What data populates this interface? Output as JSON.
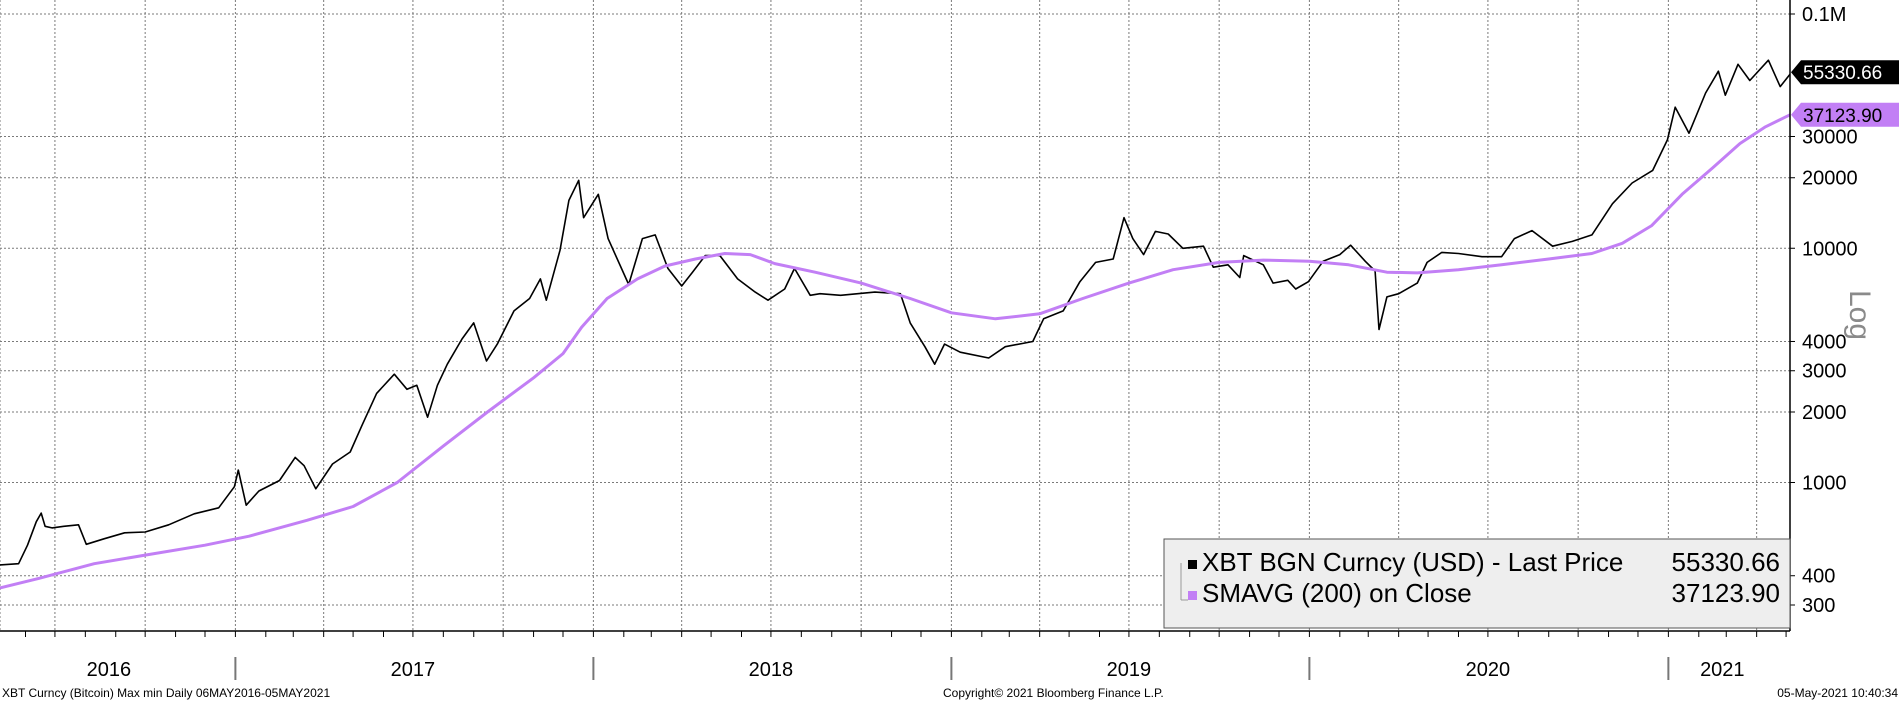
{
  "chart_data": {
    "type": "line",
    "y_scale": "log",
    "grid": true,
    "legend_position": "bottom-right",
    "ylabel": "Log",
    "y_ticks": [
      {
        "value": 100000,
        "label": "0.1M"
      },
      {
        "value": 30000,
        "label": "30000"
      },
      {
        "value": 20000,
        "label": "20000"
      },
      {
        "value": 10000,
        "label": "10000"
      },
      {
        "value": 4000,
        "label": "4000"
      },
      {
        "value": 3000,
        "label": "3000"
      },
      {
        "value": 2000,
        "label": "2000"
      },
      {
        "value": 1000,
        "label": "1000"
      },
      {
        "value": 400,
        "label": "400"
      },
      {
        "value": 300,
        "label": "300"
      }
    ],
    "x_ticks": [
      {
        "date": "2016-05-06"
      },
      {
        "date": "2016-07-01"
      },
      {
        "date": "2016-10-01"
      },
      {
        "date": "2017-01-01"
      },
      {
        "date": "2017-04-01"
      },
      {
        "date": "2017-07-01"
      },
      {
        "date": "2017-10-01"
      },
      {
        "date": "2018-01-01"
      },
      {
        "date": "2018-04-01"
      },
      {
        "date": "2018-07-01"
      },
      {
        "date": "2018-10-01"
      },
      {
        "date": "2019-01-01"
      },
      {
        "date": "2019-04-01"
      },
      {
        "date": "2019-07-01"
      },
      {
        "date": "2019-10-01"
      },
      {
        "date": "2020-01-01"
      },
      {
        "date": "2020-04-01"
      },
      {
        "date": "2020-07-01"
      },
      {
        "date": "2020-10-01"
      },
      {
        "date": "2021-01-01"
      },
      {
        "date": "2021-04-01"
      }
    ],
    "year_labels": [
      {
        "label": "2016",
        "date": "2016-08-25"
      },
      {
        "label": "2017",
        "date": "2017-07-01"
      },
      {
        "label": "2018",
        "date": "2018-07-01"
      },
      {
        "label": "2019",
        "date": "2019-07-01"
      },
      {
        "label": "2020",
        "date": "2020-07-01"
      },
      {
        "label": "2021",
        "date": "2021-02-25"
      }
    ],
    "year_separators": [
      "2017-01-01",
      "2018-01-01",
      "2019-01-01",
      "2020-01-01",
      "2021-01-01"
    ],
    "series": [
      {
        "name": "XBT BGN Curncy (USD) - Last Price",
        "color": "#000000",
        "last_value_label": "55330.66",
        "points": [
          [
            "2016-05-06",
            445
          ],
          [
            "2016-05-25",
            450
          ],
          [
            "2016-06-03",
            540
          ],
          [
            "2016-06-12",
            680
          ],
          [
            "2016-06-17",
            740
          ],
          [
            "2016-06-21",
            650
          ],
          [
            "2016-06-28",
            640
          ],
          [
            "2016-07-10",
            650
          ],
          [
            "2016-07-25",
            660
          ],
          [
            "2016-08-02",
            545
          ],
          [
            "2016-08-20",
            575
          ],
          [
            "2016-09-10",
            610
          ],
          [
            "2016-10-01",
            615
          ],
          [
            "2016-10-25",
            660
          ],
          [
            "2016-11-20",
            735
          ],
          [
            "2016-12-15",
            780
          ],
          [
            "2016-12-31",
            960
          ],
          [
            "2017-01-04",
            1130
          ],
          [
            "2017-01-12",
            800
          ],
          [
            "2017-01-25",
            920
          ],
          [
            "2017-02-15",
            1020
          ],
          [
            "2017-03-03",
            1280
          ],
          [
            "2017-03-12",
            1180
          ],
          [
            "2017-03-24",
            940
          ],
          [
            "2017-04-10",
            1200
          ],
          [
            "2017-04-28",
            1350
          ],
          [
            "2017-05-10",
            1750
          ],
          [
            "2017-05-25",
            2400
          ],
          [
            "2017-06-12",
            2900
          ],
          [
            "2017-06-25",
            2500
          ],
          [
            "2017-07-05",
            2600
          ],
          [
            "2017-07-16",
            1900
          ],
          [
            "2017-07-26",
            2600
          ],
          [
            "2017-08-05",
            3200
          ],
          [
            "2017-08-20",
            4100
          ],
          [
            "2017-09-01",
            4800
          ],
          [
            "2017-09-14",
            3300
          ],
          [
            "2017-09-25",
            3900
          ],
          [
            "2017-10-12",
            5400
          ],
          [
            "2017-10-28",
            6100
          ],
          [
            "2017-11-08",
            7400
          ],
          [
            "2017-11-14",
            6000
          ],
          [
            "2017-11-28",
            9800
          ],
          [
            "2017-12-07",
            16000
          ],
          [
            "2017-12-17",
            19500
          ],
          [
            "2017-12-22",
            13500
          ],
          [
            "2018-01-06",
            17000
          ],
          [
            "2018-01-16",
            11000
          ],
          [
            "2018-02-06",
            7000
          ],
          [
            "2018-02-20",
            11000
          ],
          [
            "2018-03-05",
            11400
          ],
          [
            "2018-03-18",
            8200
          ],
          [
            "2018-04-01",
            6900
          ],
          [
            "2018-04-12",
            7900
          ],
          [
            "2018-04-25",
            9300
          ],
          [
            "2018-05-10",
            9300
          ],
          [
            "2018-05-28",
            7400
          ],
          [
            "2018-06-15",
            6500
          ],
          [
            "2018-06-28",
            6000
          ],
          [
            "2018-07-15",
            6700
          ],
          [
            "2018-07-25",
            8200
          ],
          [
            "2018-08-10",
            6300
          ],
          [
            "2018-08-20",
            6400
          ],
          [
            "2018-09-10",
            6300
          ],
          [
            "2018-10-15",
            6500
          ],
          [
            "2018-11-10",
            6400
          ],
          [
            "2018-11-20",
            4800
          ],
          [
            "2018-12-05",
            3800
          ],
          [
            "2018-12-15",
            3200
          ],
          [
            "2018-12-25",
            3900
          ],
          [
            "2019-01-10",
            3600
          ],
          [
            "2019-02-08",
            3400
          ],
          [
            "2019-02-25",
            3800
          ],
          [
            "2019-03-25",
            4000
          ],
          [
            "2019-04-05",
            5000
          ],
          [
            "2019-04-25",
            5400
          ],
          [
            "2019-05-12",
            7200
          ],
          [
            "2019-05-28",
            8700
          ],
          [
            "2019-06-15",
            9000
          ],
          [
            "2019-06-26",
            13500
          ],
          [
            "2019-07-05",
            11000
          ],
          [
            "2019-07-16",
            9400
          ],
          [
            "2019-07-28",
            11800
          ],
          [
            "2019-08-10",
            11500
          ],
          [
            "2019-08-25",
            10000
          ],
          [
            "2019-09-15",
            10200
          ],
          [
            "2019-09-25",
            8300
          ],
          [
            "2019-10-10",
            8500
          ],
          [
            "2019-10-22",
            7500
          ],
          [
            "2019-10-26",
            9300
          ],
          [
            "2019-11-15",
            8500
          ],
          [
            "2019-11-25",
            7100
          ],
          [
            "2019-12-10",
            7300
          ],
          [
            "2019-12-18",
            6700
          ],
          [
            "2019-12-31",
            7200
          ],
          [
            "2020-01-15",
            8800
          ],
          [
            "2020-02-01",
            9400
          ],
          [
            "2020-02-12",
            10300
          ],
          [
            "2020-02-27",
            8800
          ],
          [
            "2020-03-08",
            8000
          ],
          [
            "2020-03-12",
            4500
          ],
          [
            "2020-03-20",
            6200
          ],
          [
            "2020-04-01",
            6400
          ],
          [
            "2020-04-20",
            7100
          ],
          [
            "2020-04-30",
            8700
          ],
          [
            "2020-05-15",
            9600
          ],
          [
            "2020-06-01",
            9500
          ],
          [
            "2020-06-25",
            9200
          ],
          [
            "2020-07-15",
            9200
          ],
          [
            "2020-07-28",
            11000
          ],
          [
            "2020-08-15",
            11900
          ],
          [
            "2020-09-05",
            10200
          ],
          [
            "2020-09-25",
            10700
          ],
          [
            "2020-10-15",
            11400
          ],
          [
            "2020-11-05",
            15500
          ],
          [
            "2020-11-25",
            19000
          ],
          [
            "2020-12-16",
            21500
          ],
          [
            "2020-12-31",
            29000
          ],
          [
            "2021-01-08",
            40000
          ],
          [
            "2021-01-22",
            31000
          ],
          [
            "2021-02-08",
            46000
          ],
          [
            "2021-02-21",
            57000
          ],
          [
            "2021-02-28",
            45000
          ],
          [
            "2021-03-13",
            61000
          ],
          [
            "2021-03-25",
            52000
          ],
          [
            "2021-04-13",
            63500
          ],
          [
            "2021-04-25",
            49000
          ],
          [
            "2021-05-05",
            55330.66
          ]
        ]
      },
      {
        "name": "SMAVG (200)  on Close",
        "color": "#c27ff5",
        "last_value_label": "37123.90",
        "points": [
          [
            "2016-05-06",
            355
          ],
          [
            "2016-06-15",
            390
          ],
          [
            "2016-08-10",
            450
          ],
          [
            "2016-10-01",
            490
          ],
          [
            "2016-12-01",
            540
          ],
          [
            "2017-01-15",
            590
          ],
          [
            "2017-03-15",
            690
          ],
          [
            "2017-05-01",
            790
          ],
          [
            "2017-06-15",
            1000
          ],
          [
            "2017-08-01",
            1430
          ],
          [
            "2017-09-15",
            2000
          ],
          [
            "2017-11-01",
            2800
          ],
          [
            "2017-12-01",
            3550
          ],
          [
            "2017-12-20",
            4600
          ],
          [
            "2018-01-15",
            6100
          ],
          [
            "2018-02-15",
            7400
          ],
          [
            "2018-03-15",
            8400
          ],
          [
            "2018-04-15",
            9000
          ],
          [
            "2018-05-15",
            9500
          ],
          [
            "2018-06-10",
            9400
          ],
          [
            "2018-07-05",
            8600
          ],
          [
            "2018-08-15",
            7900
          ],
          [
            "2018-10-01",
            7100
          ],
          [
            "2018-11-20",
            6100
          ],
          [
            "2019-01-01",
            5300
          ],
          [
            "2019-02-15",
            5000
          ],
          [
            "2019-04-01",
            5250
          ],
          [
            "2019-05-15",
            6100
          ],
          [
            "2019-07-01",
            7100
          ],
          [
            "2019-08-15",
            8100
          ],
          [
            "2019-10-01",
            8700
          ],
          [
            "2019-11-15",
            8900
          ],
          [
            "2020-01-01",
            8800
          ],
          [
            "2020-02-10",
            8500
          ],
          [
            "2020-03-20",
            7900
          ],
          [
            "2020-04-20",
            7850
          ],
          [
            "2020-06-01",
            8100
          ],
          [
            "2020-07-15",
            8500
          ],
          [
            "2020-09-01",
            9000
          ],
          [
            "2020-10-15",
            9500
          ],
          [
            "2020-11-15",
            10500
          ],
          [
            "2020-12-15",
            12500
          ],
          [
            "2021-01-15",
            17000
          ],
          [
            "2021-02-15",
            22000
          ],
          [
            "2021-03-15",
            28000
          ],
          [
            "2021-04-10",
            33000
          ],
          [
            "2021-05-05",
            37123.9
          ]
        ]
      }
    ],
    "legend": [
      {
        "label": "XBT BGN Curncy (USD) - Last Price",
        "value": "55330.66"
      },
      {
        "label": "SMAVG (200)  on Close",
        "value": "37123.90"
      }
    ]
  },
  "footer": {
    "left": "XBT Curncy (Bitcoin) Max min  Daily 06MAY2016-05MAY2021",
    "center": "Copyright© 2021 Bloomberg Finance L.P.",
    "right": "05-May-2021 10:40:34"
  }
}
